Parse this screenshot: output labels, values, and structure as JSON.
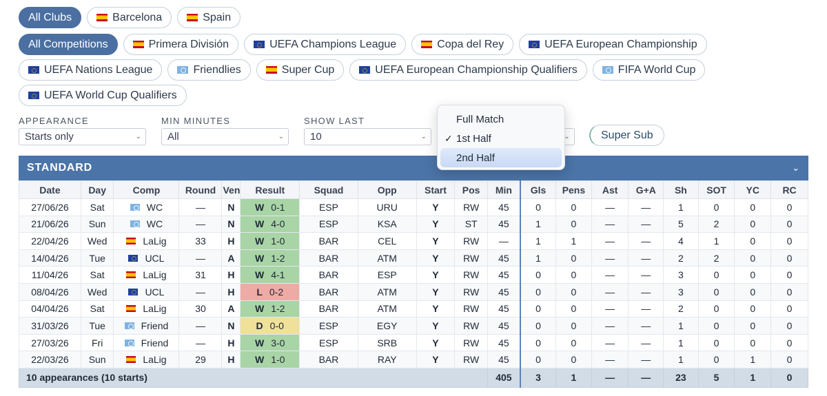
{
  "club_filters": [
    {
      "label": "All Clubs",
      "flag": "",
      "active": true
    },
    {
      "label": "Barcelona",
      "flag": "es",
      "active": false
    },
    {
      "label": "Spain",
      "flag": "es",
      "active": false
    }
  ],
  "competition_filters": [
    [
      {
        "label": "All Competitions",
        "flag": "",
        "active": true
      },
      {
        "label": "Primera División",
        "flag": "es",
        "active": false
      },
      {
        "label": "UEFA Champions League",
        "flag": "eu",
        "active": false
      },
      {
        "label": "Copa del Rey",
        "flag": "es",
        "active": false
      },
      {
        "label": "UEFA European Championship",
        "flag": "eu",
        "active": false
      }
    ],
    [
      {
        "label": "UEFA Nations League",
        "flag": "eu",
        "active": false
      },
      {
        "label": "Friendlies",
        "flag": "un",
        "active": false
      },
      {
        "label": "Super Cup",
        "flag": "es",
        "active": false
      },
      {
        "label": "UEFA European Championship Qualifiers",
        "flag": "eu",
        "active": false
      },
      {
        "label": "FIFA World Cup",
        "flag": "un",
        "active": false
      }
    ],
    [
      {
        "label": "UEFA World Cup Qualifiers",
        "flag": "eu",
        "active": false
      }
    ]
  ],
  "filters": {
    "appearance": {
      "label": "APPEARANCE",
      "value": "Starts only"
    },
    "min_minutes": {
      "label": "MIN MINUTES",
      "value": "All"
    },
    "show_last": {
      "label": "SHOW LAST",
      "value": "10"
    }
  },
  "period_dropdown": {
    "options": [
      "Full Match",
      "1st Half",
      "2nd Half"
    ],
    "selected": "1st Half",
    "highlighted": "2nd Half"
  },
  "super_sub_label": "Super Sub",
  "section_title": "STANDARD",
  "columns": [
    "Date",
    "Day",
    "Comp",
    "Round",
    "Ven",
    "Result",
    "Squad",
    "Opp",
    "Start",
    "Pos",
    "Min",
    "Gls",
    "Pens",
    "Ast",
    "G+A",
    "Sh",
    "SOT",
    "YC",
    "RC"
  ],
  "rows": [
    [
      "27/06/26",
      "Sat",
      "WC",
      "—",
      "N",
      "W",
      "0-1",
      "ESP",
      "URU",
      "Y",
      "RW",
      "45",
      "0",
      "0",
      "—",
      "—",
      "1",
      "0",
      "0",
      "0",
      "un"
    ],
    [
      "21/06/26",
      "Sun",
      "WC",
      "—",
      "N",
      "W",
      "4-0",
      "ESP",
      "KSA",
      "Y",
      "ST",
      "45",
      "1",
      "0",
      "—",
      "—",
      "5",
      "2",
      "0",
      "0",
      "un"
    ],
    [
      "22/04/26",
      "Wed",
      "LaLig",
      "33",
      "H",
      "W",
      "1-0",
      "BAR",
      "CEL",
      "Y",
      "RW",
      "—",
      "1",
      "1",
      "—",
      "—",
      "4",
      "1",
      "0",
      "0",
      "es"
    ],
    [
      "14/04/26",
      "Tue",
      "UCL",
      "—",
      "A",
      "W",
      "1-2",
      "BAR",
      "ATM",
      "Y",
      "RW",
      "45",
      "1",
      "0",
      "—",
      "—",
      "2",
      "2",
      "0",
      "0",
      "eu"
    ],
    [
      "11/04/26",
      "Sat",
      "LaLig",
      "31",
      "H",
      "W",
      "4-1",
      "BAR",
      "ESP",
      "Y",
      "RW",
      "45",
      "0",
      "0",
      "—",
      "—",
      "3",
      "0",
      "0",
      "0",
      "es"
    ],
    [
      "08/04/26",
      "Wed",
      "UCL",
      "—",
      "H",
      "L",
      "0-2",
      "BAR",
      "ATM",
      "Y",
      "RW",
      "45",
      "0",
      "0",
      "—",
      "—",
      "3",
      "0",
      "0",
      "0",
      "eu"
    ],
    [
      "04/04/26",
      "Sat",
      "LaLig",
      "30",
      "A",
      "W",
      "1-2",
      "BAR",
      "ATM",
      "Y",
      "RW",
      "45",
      "0",
      "0",
      "—",
      "—",
      "2",
      "0",
      "0",
      "0",
      "es"
    ],
    [
      "31/03/26",
      "Tue",
      "Friend",
      "—",
      "N",
      "D",
      "0-0",
      "ESP",
      "EGY",
      "Y",
      "RW",
      "45",
      "0",
      "0",
      "—",
      "—",
      "1",
      "0",
      "0",
      "0",
      "un"
    ],
    [
      "27/03/26",
      "Fri",
      "Friend",
      "—",
      "H",
      "W",
      "3-0",
      "ESP",
      "SRB",
      "Y",
      "RW",
      "45",
      "0",
      "0",
      "—",
      "—",
      "1",
      "0",
      "0",
      "0",
      "un"
    ],
    [
      "22/03/26",
      "Sun",
      "LaLig",
      "29",
      "H",
      "W",
      "1-0",
      "BAR",
      "RAY",
      "Y",
      "RW",
      "45",
      "0",
      "0",
      "—",
      "—",
      "1",
      "0",
      "1",
      "0",
      "es"
    ]
  ],
  "footer": {
    "summary": "10 appearances (10 starts)",
    "min": "405",
    "gls": "3",
    "pens": "1",
    "ast": "—",
    "ga": "—",
    "sh": "23",
    "sot": "5",
    "yc": "1",
    "rc": "0"
  }
}
